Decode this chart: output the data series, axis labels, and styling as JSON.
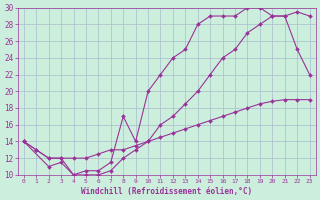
{
  "xlabel": "Windchill (Refroidissement éolien,°C)",
  "background_color": "#cceedd",
  "line_color": "#993399",
  "grid_color": "#aabbcc",
  "xlim": [
    -0.5,
    23.5
  ],
  "ylim": [
    10,
    30
  ],
  "yticks": [
    10,
    12,
    14,
    16,
    18,
    20,
    22,
    24,
    26,
    28,
    30
  ],
  "xticks": [
    0,
    1,
    2,
    3,
    4,
    5,
    6,
    7,
    8,
    9,
    10,
    11,
    12,
    13,
    14,
    15,
    16,
    17,
    18,
    19,
    20,
    21,
    22,
    23
  ],
  "line1_x": [
    0,
    1,
    2,
    3,
    4,
    5,
    6,
    7,
    8,
    9,
    10,
    11,
    12,
    13,
    14,
    15,
    16,
    17,
    18,
    19,
    20,
    21,
    22,
    23
  ],
  "line1_y": [
    14,
    13,
    12,
    12,
    10,
    10,
    10,
    10.5,
    12,
    13,
    14,
    16,
    17,
    18.5,
    20,
    22,
    24,
    25,
    27,
    28,
    29,
    29,
    29.5,
    29
  ],
  "line2_x": [
    0,
    2,
    3,
    4,
    5,
    6,
    7,
    8,
    9,
    10,
    11,
    12,
    13,
    14,
    15,
    16,
    17,
    18,
    19,
    20,
    21,
    22,
    23
  ],
  "line2_y": [
    14,
    11,
    11.5,
    10,
    10.5,
    10.5,
    11.5,
    17,
    14,
    20,
    22,
    24,
    25,
    28,
    29,
    29,
    29,
    30,
    30,
    29,
    29,
    25,
    22
  ],
  "line3_x": [
    0,
    1,
    2,
    3,
    4,
    5,
    6,
    7,
    8,
    9,
    10,
    11,
    12,
    13,
    14,
    15,
    16,
    17,
    18,
    19,
    20,
    21,
    22,
    23
  ],
  "line3_y": [
    14,
    13,
    12,
    12,
    12,
    12,
    12.5,
    13,
    13,
    13.5,
    14,
    14.5,
    15,
    15.5,
    16,
    16.5,
    17,
    17.5,
    18,
    18.5,
    18.8,
    19,
    19,
    19
  ]
}
